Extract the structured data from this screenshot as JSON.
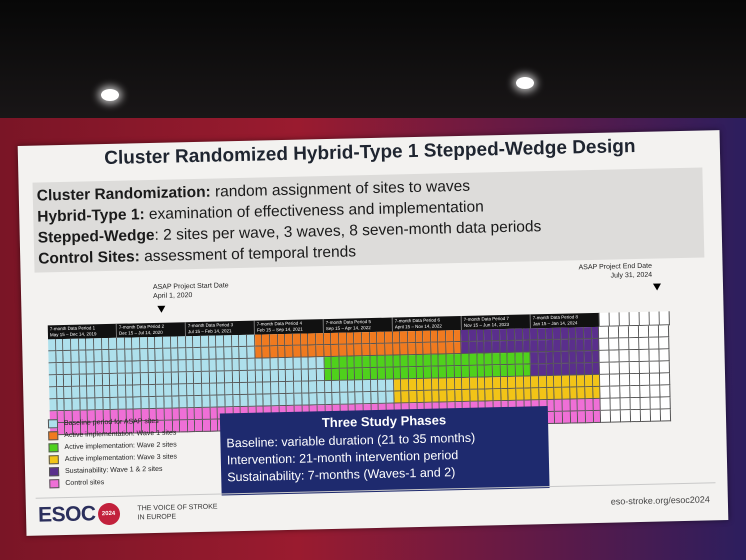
{
  "slide": {
    "title": "Cluster Randomized Hybrid-Type 1 Stepped-Wedge Design",
    "definitions": [
      {
        "term": "Cluster Randomization:",
        "text": " random assignment of sites to waves"
      },
      {
        "term": "Hybrid-Type 1:",
        "text": " examination of effectiveness and implementation"
      },
      {
        "term": "Stepped-Wedge",
        "text": ": 2 sites per wave, 3 waves, 8 seven-month data periods"
      },
      {
        "term": "Control Sites:",
        "text": " assessment of temporal trends"
      }
    ],
    "start_marker": {
      "label": "ASAP Project Start Date",
      "date": "April 1, 2020"
    },
    "end_marker": {
      "label": "ASAP Project End Date",
      "date": "July 31, 2024"
    },
    "periods": [
      {
        "name": "7-month Data Period 1",
        "range": "May 15 – Dec 14, 2019"
      },
      {
        "name": "7-month Data Period 2",
        "range": "Dec 15 – Jul 14, 2020"
      },
      {
        "name": "7-month Data Period 3",
        "range": "Jul 15 – Feb 14, 2021"
      },
      {
        "name": "7-month Data Period 4",
        "range": "Feb 15 – Sep 14, 2021"
      },
      {
        "name": "7-month Data Period 5",
        "range": "Sep 15 – Apr 14, 2022"
      },
      {
        "name": "7-month Data Period 6",
        "range": "April 15 – Nov 14, 2022"
      },
      {
        "name": "7-month Data Period 7",
        "range": "Nov 15 – Jun 14, 2023"
      },
      {
        "name": "7-month Data Period 8",
        "range": "Jan 15 – Jan 14, 2024"
      }
    ],
    "colors": {
      "baseline": "#aee0ec",
      "wave1": "#f07a1f",
      "wave2": "#4fd11c",
      "wave3": "#f2c417",
      "sustain": "#5a2f8c",
      "control": "#ef6fd6",
      "blank": "#ffffff"
    },
    "rows": [
      {
        "key": "wave1",
        "active_start": 4,
        "sustain_start": 7
      },
      {
        "key": "wave2",
        "active_start": 5,
        "sustain_start": 8
      },
      {
        "key": "wave3",
        "active_start": 6,
        "sustain_start": 9
      },
      {
        "key": "control",
        "active_start": 0,
        "sustain_start": 0
      }
    ],
    "legend": [
      {
        "color_key": "baseline",
        "label": "Baseline period for ASAP sites"
      },
      {
        "color_key": "wave1",
        "label": "Active implementation: Wave 1 sites"
      },
      {
        "color_key": "wave2",
        "label": "Active implementation: Wave 2 sites"
      },
      {
        "color_key": "wave3",
        "label": "Active implementation: Wave 3 sites"
      },
      {
        "color_key": "sustain",
        "label": "Sustainability: Wave 1 & 2 sites"
      },
      {
        "color_key": "control",
        "label": "Control sites"
      }
    ],
    "phases": {
      "title": "Three Study Phases",
      "lines": [
        "Baseline: variable duration (21 to 35 months)",
        "Intervention: 21-month intervention period",
        "Sustainability: 7-months (Waves-1 and 2)"
      ]
    },
    "footer": {
      "logo": "ESOC",
      "badge": "2024",
      "tagline_1": "THE VOICE OF STROKE",
      "tagline_2": "IN EUROPE",
      "url": "eso-stroke.org/esoc2024"
    }
  }
}
